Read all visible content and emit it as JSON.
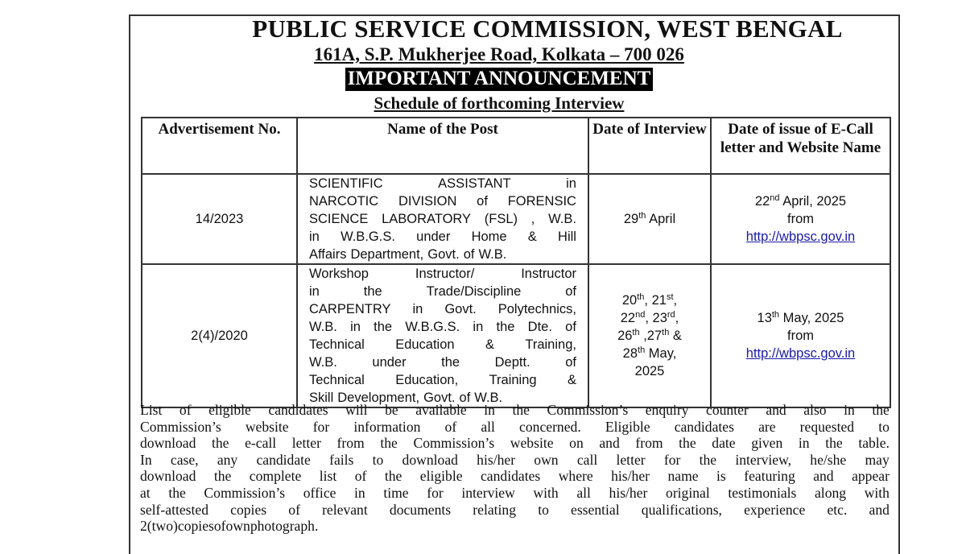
{
  "header": {
    "title": "PUBLIC SERVICE COMMISSION, WEST BENGAL",
    "address": "161A, S.P. Mukherjee Road, Kolkata – 700 026",
    "announcement": "IMPORTANT ANNOUNCEMENT",
    "subtitle": "Schedule of forthcoming Interview"
  },
  "table": {
    "columns": [
      "Advertisement No.",
      "Name of the Post",
      "Date of Interview",
      "Date of issue of E-Call letter and Website Name"
    ],
    "rows": [
      {
        "adv_no": "14/2023",
        "post_lines": [
          "SCIENTIFIC ASSISTANT in",
          "NARCOTIC DIVISION of FORENSIC",
          "SCIENCE LABORATORY (FSL) , W.B.",
          "in W.B.G.S. under Home & Hill",
          "Affairs Department, Govt. of W.B."
        ],
        "interview_date": [
          [
            {
              "t": "29"
            },
            {
              "s": "th"
            },
            {
              "t": " April"
            }
          ]
        ],
        "ecall_date": [
          {
            "t": "22"
          },
          {
            "s": "nd"
          },
          {
            "t": " April, 2025"
          }
        ],
        "from_label": "from",
        "website": "http://wbpsc.gov.in"
      },
      {
        "adv_no": "2(4)/2020",
        "post_lines": [
          "Workshop Instructor/ Instructor",
          "in the Trade/Discipline of",
          "CARPENTRY in Govt. Polytechnics,",
          "W.B. in the W.B.G.S. in the Dte. of",
          "Technical Education & Training,",
          "W.B. under the Deptt. of",
          "Technical Education, Training &",
          "Skill Development, Govt. of W.B."
        ],
        "interview_date": [
          [
            {
              "t": "20"
            },
            {
              "s": "th"
            },
            {
              "t": ", 21"
            },
            {
              "s": "st"
            },
            {
              "t": ","
            }
          ],
          [
            {
              "t": "22"
            },
            {
              "s": "nd"
            },
            {
              "t": ", 23"
            },
            {
              "s": "rd"
            },
            {
              "t": ","
            }
          ],
          [
            {
              "t": "26"
            },
            {
              "s": "th"
            },
            {
              "t": " ,27"
            },
            {
              "s": "th"
            },
            {
              "t": " &"
            }
          ],
          [
            {
              "t": "28"
            },
            {
              "s": "th"
            },
            {
              "t": " May,"
            }
          ],
          [
            {
              "t": "2025"
            }
          ]
        ],
        "ecall_date": [
          {
            "t": "13"
          },
          {
            "s": "th"
          },
          {
            "t": " May, 2025"
          }
        ],
        "from_label": "from",
        "website": "http://wbpsc.gov.in"
      }
    ]
  },
  "notice_lines": [
    "List of eligible candidates will be available in the Commission’s enquiry counter and also in the",
    "Commission’s website for information of all concerned. Eligible candidates are requested to",
    "download the e-call letter from the Commission’s website on and from the date given in the table.",
    "In case, any candidate fails to download his/her own call letter for the interview, he/she may",
    "download the complete list of the eligible candidates where his/her name is featuring and appear",
    "at the Commission’s office in time for interview with all his/her original testimonials along with",
    "self-attested copies of relevant documents relating to essential qualifications, experience etc. and",
    "2 (two) copies of own photograph."
  ],
  "colors": {
    "link": "#1a1aa6",
    "text": "#111111"
  }
}
